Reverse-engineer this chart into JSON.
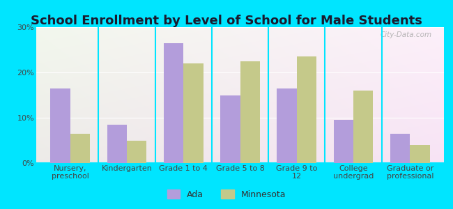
{
  "title": "School Enrollment by Level of School for Male Students",
  "categories": [
    "Nursery,\npreschool",
    "Kindergarten",
    "Grade 1 to 4",
    "Grade 5 to 8",
    "Grade 9 to\n12",
    "College\nundergrad",
    "Graduate or\nprofessional"
  ],
  "ada_values": [
    16.5,
    8.5,
    26.5,
    15.0,
    16.5,
    9.5,
    6.5
  ],
  "minnesota_values": [
    6.5,
    5.0,
    22.0,
    22.5,
    23.5,
    16.0,
    4.0
  ],
  "ada_color": "#b39ddb",
  "minnesota_color": "#c5c98a",
  "background_color": "#00e5ff",
  "ylim": [
    0,
    30
  ],
  "yticks": [
    0,
    10,
    20,
    30
  ],
  "legend_labels": [
    "Ada",
    "Minnesota"
  ],
  "title_fontsize": 13,
  "tick_fontsize": 8,
  "legend_fontsize": 9,
  "bar_width": 0.35,
  "watermark": "City-Data.com"
}
